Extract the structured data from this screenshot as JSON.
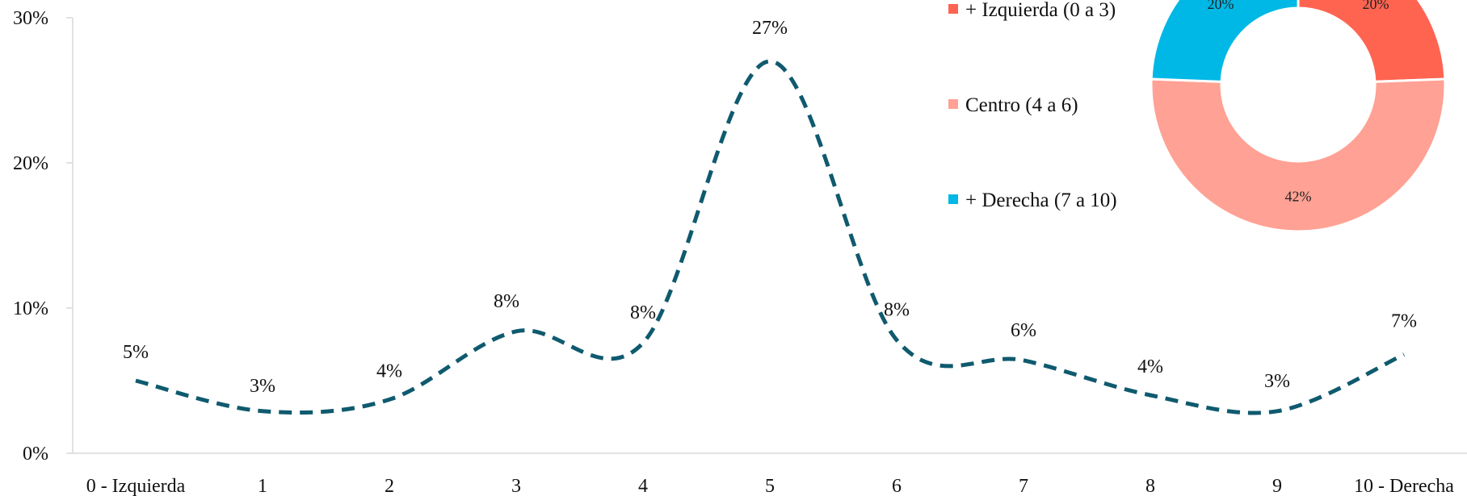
{
  "chart_data": [
    {
      "type": "line",
      "categories": [
        "0 - Izquierda",
        "1",
        "2",
        "3",
        "4",
        "5",
        "6",
        "7",
        "8",
        "9",
        "10 - Derecha"
      ],
      "values": [
        5,
        3,
        4,
        8,
        8,
        27,
        8,
        6,
        4,
        3,
        7
      ],
      "value_suffix": "%",
      "smooth_y": [
        5,
        2.9,
        3.7,
        8.4,
        7.6,
        27,
        7.8,
        6.4,
        4.0,
        2.9,
        6.8
      ],
      "ylim": [
        0,
        30
      ],
      "yticks": [
        "0%",
        "10%",
        "20%",
        "30%"
      ],
      "ytick_values": [
        0,
        10,
        20,
        30
      ],
      "line_color": "#0F5A6E",
      "line_style": "dashed",
      "grid": false,
      "title": "",
      "xlabel": "",
      "ylabel": ""
    },
    {
      "type": "pie",
      "style": "donut",
      "legend_position": "left",
      "series": [
        {
          "name": "+ Izquierda (0 a 3)",
          "value": 20,
          "label": "20%",
          "color": "#FF6451"
        },
        {
          "name": "Centro (4 a 6)",
          "value": 42,
          "label": "42%",
          "color": "#FFA194"
        },
        {
          "name": "+ Derecha (7 a 10)",
          "value": 20,
          "label": "20%",
          "color": "#00B8E6"
        }
      ]
    }
  ]
}
